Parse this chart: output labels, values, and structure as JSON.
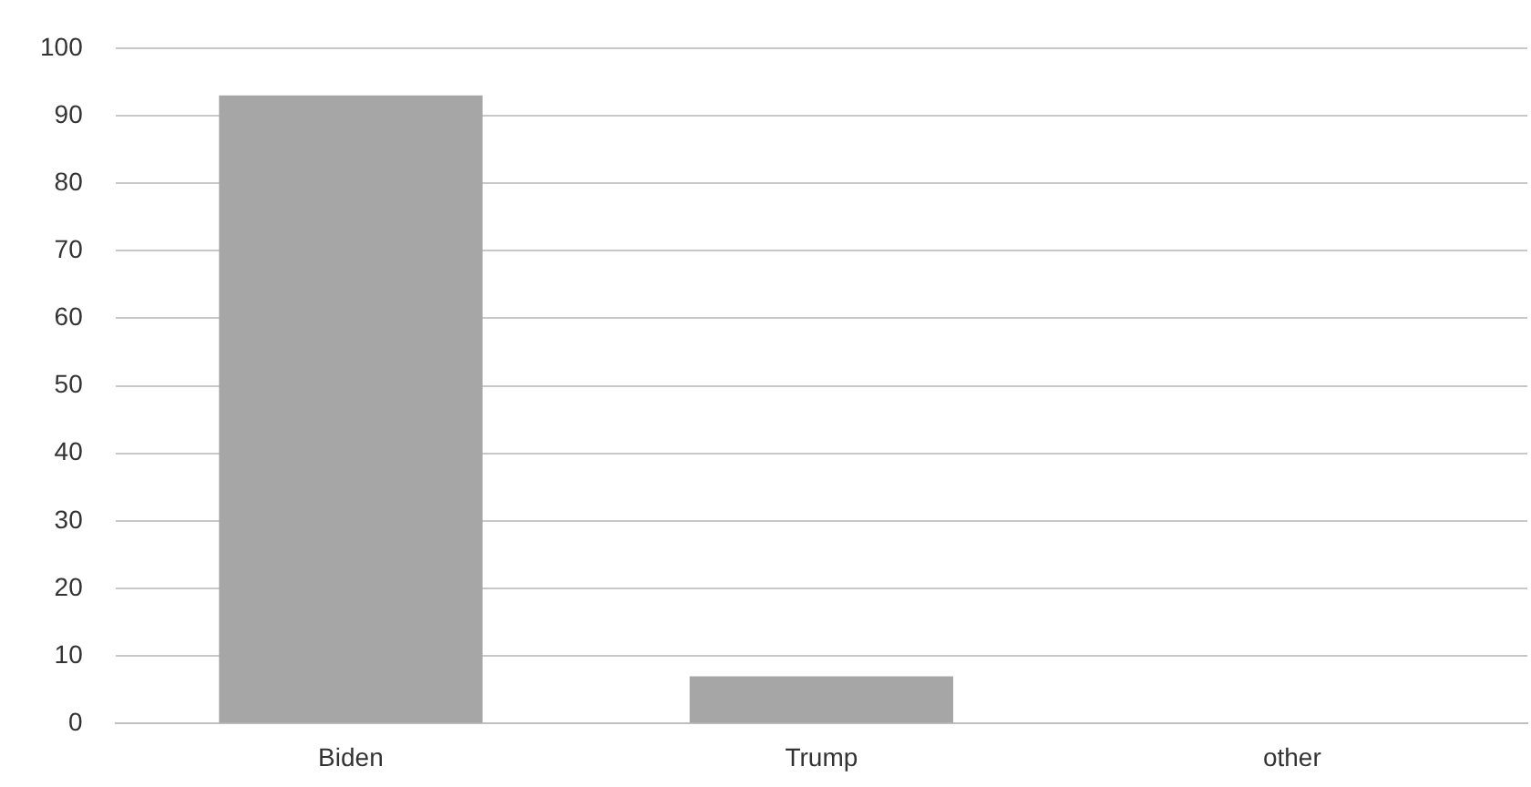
{
  "chart_data": {
    "type": "bar",
    "categories": [
      "Biden",
      "Trump",
      "other"
    ],
    "values": [
      93,
      7,
      0
    ],
    "color": "#a6a6a6",
    "ylim": [
      0,
      100
    ],
    "yticks": [
      0,
      10,
      20,
      30,
      40,
      50,
      60,
      70,
      80,
      90,
      100
    ],
    "grid": "y"
  }
}
